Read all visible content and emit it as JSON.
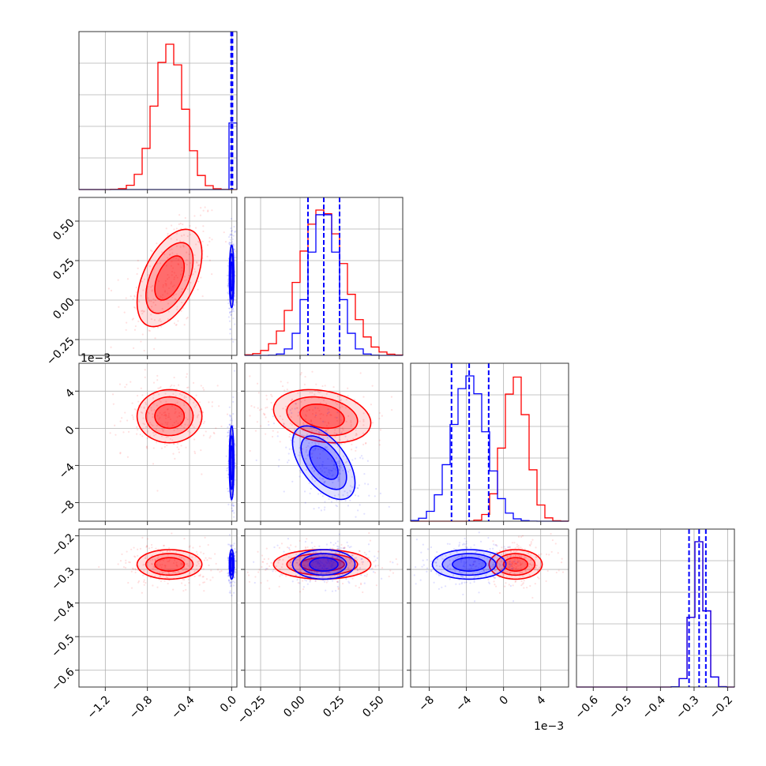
{
  "colors": {
    "red": "#ff0000",
    "blue": "#0000ff",
    "grid": "#b0b0b0",
    "frame": "#333333"
  },
  "offset_labels": {
    "row3_y": "1e−3",
    "col3_x": "1e−3"
  },
  "chart_data": {
    "type": "corner",
    "grid": true,
    "params": [
      {
        "range": [
          -1.45,
          0.05
        ],
        "ticks": [
          -1.2,
          -0.8,
          -0.4,
          0.0
        ],
        "tick_labels": [
          "−1.2",
          "−0.8",
          "−0.4",
          "0.0"
        ]
      },
      {
        "range": [
          -0.35,
          0.65
        ],
        "ticks": [
          -0.25,
          0.0,
          0.25,
          0.5
        ],
        "tick_labels": [
          "−0.25",
          "0.00",
          "0.25",
          "0.50"
        ]
      },
      {
        "range": [
          -10.0,
          7.0
        ],
        "ticks": [
          -8,
          -4,
          0,
          4
        ],
        "tick_labels": [
          "−8",
          "−4",
          "0",
          "4"
        ]
      },
      {
        "range": [
          -0.65,
          -0.18
        ],
        "ticks": [
          -0.6,
          -0.5,
          -0.4,
          -0.3,
          -0.2
        ],
        "tick_labels": [
          "−0.6",
          "−0.5",
          "−0.4",
          "−0.3",
          "−0.2"
        ]
      }
    ],
    "series": [
      {
        "color": "#ff0000",
        "means": [
          -0.59,
          0.14,
          1.3,
          -0.285
        ],
        "sds": [
          0.14,
          0.14,
          1.3,
          0.02
        ],
        "corr": [
          [
            1,
            0.5,
            0,
            0
          ],
          [
            0.5,
            1,
            -0.25,
            0
          ],
          [
            0,
            -0.25,
            1,
            0
          ],
          [
            0,
            0,
            0,
            1
          ]
        ],
        "quantiles": null
      },
      {
        "color": "#0000ff",
        "means": [
          0.0,
          0.15,
          -3.7,
          -0.285
        ],
        "sds": [
          0.01,
          0.09,
          1.8,
          0.02
        ],
        "corr": [
          [
            1,
            0,
            0,
            0
          ],
          [
            0,
            1,
            -0.55,
            0
          ],
          [
            0,
            -0.55,
            1,
            0
          ],
          [
            0,
            0,
            0,
            1
          ]
        ],
        "quantiles": [
          [
            -0.005,
            0.0,
            0.008
          ],
          [
            0.05,
            0.15,
            0.25
          ],
          [
            -5.6,
            -3.7,
            -1.6
          ],
          [
            -0.315,
            -0.285,
            -0.265
          ]
        ]
      }
    ]
  }
}
